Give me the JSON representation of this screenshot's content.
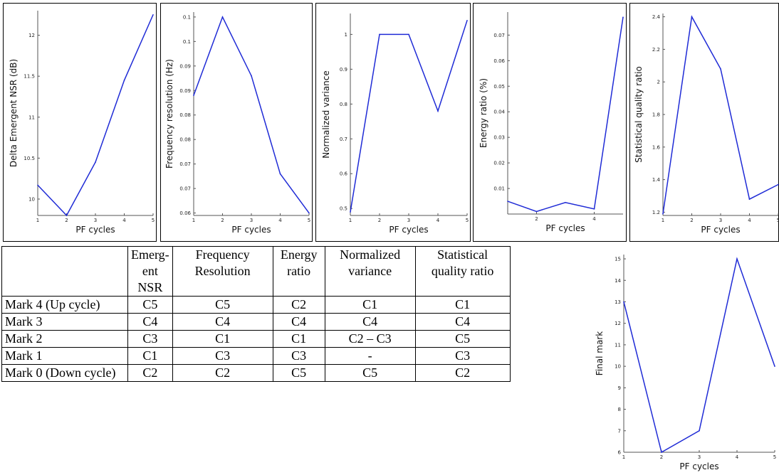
{
  "chart_data": [
    {
      "type": "line",
      "xlabel": "PF cycles",
      "ylabel": "Delta Emergent NSR (dB)",
      "x": [
        1,
        2,
        3,
        4,
        5
      ],
      "series": [
        {
          "values": [
            10.17,
            9.8,
            10.45,
            11.45,
            12.25
          ]
        }
      ],
      "xticks": [
        "1",
        "2",
        "3",
        "4",
        "5"
      ],
      "yticks": [
        "10",
        "10.5",
        "11",
        "11.5",
        "12"
      ],
      "ylim": [
        9.8,
        12.3
      ],
      "ytick_values": [
        10,
        10.5,
        11,
        11.5,
        12
      ]
    },
    {
      "type": "line",
      "xlabel": "PF cycles",
      "ylabel": "Frequency resolution (Hz)",
      "x": [
        1,
        2,
        3,
        4,
        5
      ],
      "series": [
        {
          "values": [
            0.084,
            0.1,
            0.088,
            0.068,
            0.06
          ]
        }
      ],
      "xticks": [
        "1",
        "2",
        "3",
        "4",
        "5"
      ],
      "yticks": [
        "0.06",
        "0.07",
        "0.07",
        "0.08",
        "0.08",
        "0.09",
        "0.09",
        "0.1",
        "0.1"
      ],
      "ylim": [
        0.0595,
        0.101
      ],
      "ytick_values": [
        0.06,
        0.065,
        0.07,
        0.075,
        0.08,
        0.085,
        0.09,
        0.095,
        0.1
      ]
    },
    {
      "type": "line",
      "xlabel": "PF cycles",
      "ylabel": "Normalized variance",
      "x": [
        1,
        2,
        3,
        4,
        5
      ],
      "series": [
        {
          "values": [
            0.49,
            1.0,
            1.0,
            0.78,
            1.04
          ]
        }
      ],
      "xticks": [
        "1",
        "2",
        "3",
        "4",
        "5"
      ],
      "yticks": [
        "0.5",
        "0.6",
        "0.7",
        "0.8",
        "0.9",
        "1"
      ],
      "ylim": [
        0.48,
        1.06
      ],
      "ytick_values": [
        0.5,
        0.6,
        0.7,
        0.8,
        0.9,
        1.0
      ]
    },
    {
      "type": "line",
      "xlabel": "PF cycles",
      "ylabel": "Energy ratio (%)",
      "x": [
        1,
        2,
        3,
        4,
        5
      ],
      "series": [
        {
          "values": [
            0.005,
            0.001,
            0.0045,
            0.002,
            0.077
          ]
        }
      ],
      "xticks": [
        "2",
        "4"
      ],
      "xtick_values": [
        2,
        4
      ],
      "yticks": [
        "0.01",
        "0.02",
        "0.03",
        "0.04",
        "0.05",
        "0.06",
        "0.07"
      ],
      "ylim": [
        0,
        0.079
      ],
      "ytick_values": [
        0.01,
        0.02,
        0.03,
        0.04,
        0.05,
        0.06,
        0.07
      ]
    },
    {
      "type": "line",
      "xlabel": "PF cycles",
      "ylabel": "Statistical quality ratio",
      "x": [
        1,
        2,
        3,
        4,
        5
      ],
      "series": [
        {
          "values": [
            1.19,
            2.4,
            2.08,
            1.28,
            1.37
          ]
        }
      ],
      "xticks": [
        "1",
        "2",
        "3",
        "4",
        "5"
      ],
      "yticks": [
        "1.2",
        "1.4",
        "1.6",
        "1.8",
        "2",
        "2.2",
        "2.4"
      ],
      "ylim": [
        1.18,
        2.42
      ],
      "ytick_values": [
        1.2,
        1.4,
        1.6,
        1.8,
        2.0,
        2.2,
        2.4
      ]
    },
    {
      "type": "line",
      "xlabel": "PF cycles",
      "ylabel": "Final mark",
      "x": [
        1,
        2,
        3,
        4,
        5
      ],
      "series": [
        {
          "values": [
            13,
            6,
            7,
            15,
            10
          ]
        }
      ],
      "xticks": [
        "1",
        "2",
        "3",
        "4",
        "5"
      ],
      "yticks": [
        "6",
        "7",
        "8",
        "9",
        "10",
        "11",
        "12",
        "13",
        "14",
        "15"
      ],
      "ylim": [
        6,
        15.2
      ],
      "ytick_values": [
        6,
        7,
        8,
        9,
        10,
        11,
        12,
        13,
        14,
        15
      ]
    }
  ],
  "table": {
    "headers": [
      "",
      "Emerg-ent NSR",
      "Frequency Resolution",
      "Energy ratio",
      "Normalized variance",
      "Statistical quality ratio"
    ],
    "rows": [
      [
        "Mark 4 (Up cycle)",
        "C5",
        "C5",
        "C2",
        "C1",
        "C1"
      ],
      [
        "Mark 3",
        "C4",
        "C4",
        "C4",
        "C4",
        "C4"
      ],
      [
        "Mark 2",
        "C3",
        "C1",
        "C1",
        "C2 – C3",
        "C5"
      ],
      [
        "Mark 1",
        "C1",
        "C3",
        "C3",
        "-",
        "C3"
      ],
      [
        "Mark 0 (Down cycle)",
        "C2",
        "C2",
        "C5",
        "C5",
        "C2"
      ]
    ]
  },
  "colors": {
    "line": "#1f2bd6",
    "axis": "#555555"
  }
}
